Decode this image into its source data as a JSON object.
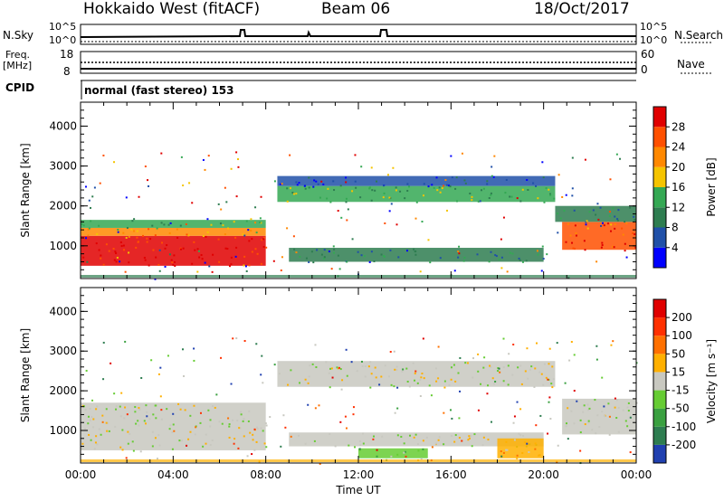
{
  "header": {
    "station": "Hokkaido West (fitACF)",
    "beam": "Beam 06",
    "date": "18/Oct/2017"
  },
  "strip_labels": {
    "nsky": "N.Sky",
    "nsky_top": "10^5",
    "nsky_bottom": "10^0",
    "nsearch": "N.Search",
    "nsearch_top": "10^5",
    "nsearch_bottom": "10^0",
    "freq_label_1": "Freq.",
    "freq_label_2": "[MHz]",
    "freq_top": "18",
    "freq_bottom": "8",
    "nave": "Nave",
    "nave_top": "60",
    "nave_bottom": "0",
    "cpid": "CPID",
    "mode": "normal (fast stereo) 153"
  },
  "chart_data": [
    {
      "type": "heatmap",
      "name": "power",
      "ylabel": "Slant Range [km]",
      "xlabel": "",
      "ylim": [
        180,
        4600
      ],
      "yticks": [
        "1000",
        "2000",
        "3000",
        "4000"
      ],
      "colorbar_label": "Power [dB]",
      "colorbar_ticks": [
        "4",
        "8",
        "12",
        "16",
        "20",
        "24",
        "28"
      ],
      "colors": [
        "#0000ff",
        "#2050a8",
        "#2e7d50",
        "#34a853",
        "#f5c400",
        "#ff8800",
        "#ff5000",
        "#e00000"
      ],
      "bands": [
        {
          "t0": 0.0,
          "t1": 8.0,
          "r0": 500,
          "r1": 1250,
          "level": 7
        },
        {
          "t0": 0.0,
          "t1": 8.0,
          "r0": 1250,
          "r1": 1450,
          "level": 5
        },
        {
          "t0": 0.0,
          "t1": 8.0,
          "r0": 1450,
          "r1": 1650,
          "level": 3
        },
        {
          "t0": 8.5,
          "t1": 20.5,
          "r0": 2100,
          "r1": 2500,
          "level": 3
        },
        {
          "t0": 8.5,
          "t1": 20.5,
          "r0": 2500,
          "r1": 2750,
          "level": 1
        },
        {
          "t0": 9.0,
          "t1": 20.0,
          "r0": 600,
          "r1": 950,
          "level": 2
        },
        {
          "t0": 20.8,
          "t1": 24.0,
          "r0": 900,
          "r1": 1600,
          "level": 6
        },
        {
          "t0": 20.5,
          "t1": 24.0,
          "r0": 1600,
          "r1": 2000,
          "level": 2
        }
      ]
    },
    {
      "type": "heatmap",
      "name": "velocity",
      "ylabel": "Slant Range [km]",
      "xlabel": "Time UT",
      "ylim": [
        180,
        4600
      ],
      "yticks": [
        "1000",
        "2000",
        "3000",
        "4000"
      ],
      "xticks": [
        "00:00",
        "04:00",
        "08:00",
        "12:00",
        "16:00",
        "20:00",
        "00:00"
      ],
      "colorbar_label": "Velocity [m s⁻¹]",
      "colorbar_ticks": [
        "200",
        "100",
        "50",
        "15",
        "-15",
        "-50",
        "-100",
        "-200"
      ],
      "colors": [
        "#2040b0",
        "#2e7d50",
        "#3aa040",
        "#66cc33",
        "#c8c8c0",
        "#ffb000",
        "#ff7000",
        "#ff3000",
        "#e00000"
      ],
      "bands": [
        {
          "t0": 0.0,
          "t1": 8.0,
          "r0": 500,
          "r1": 1700,
          "level": 4
        },
        {
          "t0": 8.5,
          "t1": 20.5,
          "r0": 2100,
          "r1": 2750,
          "level": 4
        },
        {
          "t0": 9.0,
          "t1": 20.0,
          "r0": 600,
          "r1": 950,
          "level": 4
        },
        {
          "t0": 12.0,
          "t1": 15.0,
          "r0": 300,
          "r1": 550,
          "level": 3
        },
        {
          "t0": 18.0,
          "t1": 20.0,
          "r0": 300,
          "r1": 800,
          "level": 5
        },
        {
          "t0": 20.8,
          "t1": 24.0,
          "r0": 900,
          "r1": 1800,
          "level": 4
        }
      ]
    }
  ]
}
